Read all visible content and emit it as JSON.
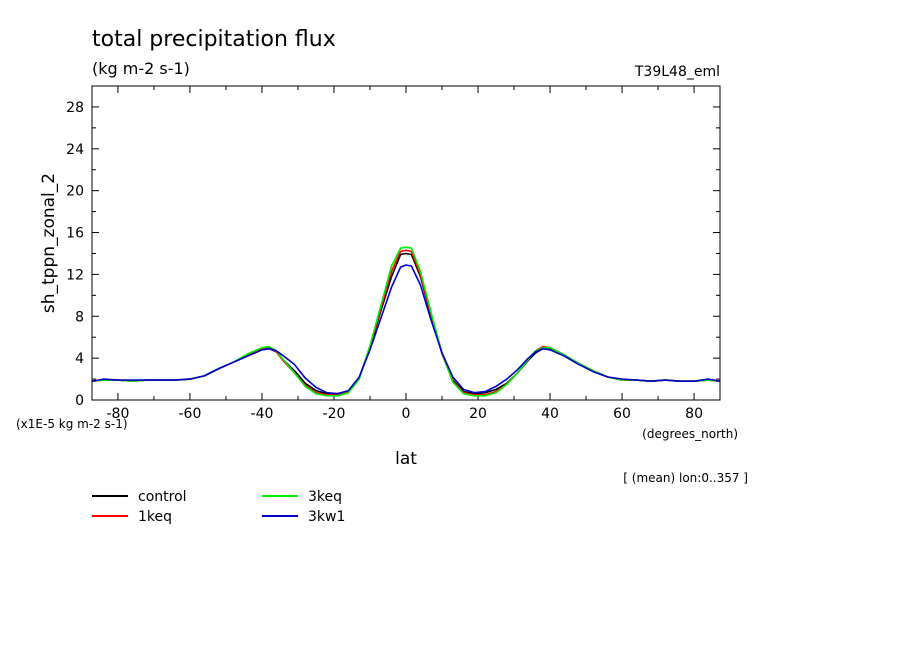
{
  "chart_data": {
    "type": "line",
    "title": "total precipitation flux",
    "units_label": "(kg m-2 s-1)",
    "experiment_label": "T39L48_eml",
    "ylabel": "sh_tppn_zonal_2",
    "xlabel": "lat",
    "x_units": "(degrees_north)",
    "y_scale_note": "(x1E-5 kg m-2 s-1)",
    "subset_note": "[ (mean) lon:0..357 ]",
    "xlim": [
      -87.2,
      87.2
    ],
    "ylim": [
      0,
      30
    ],
    "x_ticks": [
      -80,
      -60,
      -40,
      -20,
      0,
      20,
      40,
      60,
      80
    ],
    "y_ticks": [
      0,
      4,
      8,
      12,
      16,
      20,
      24,
      28
    ],
    "x_tick_labels": [
      "-80",
      "-60",
      "-40",
      "-20",
      "0",
      "20",
      "40",
      "60",
      "80"
    ],
    "y_tick_labels": [
      "0",
      "4",
      "8",
      "12",
      "16",
      "20",
      "24",
      "28"
    ],
    "grid": false,
    "legend_position": "bottom-left",
    "x": [
      -87.2,
      -84,
      -80,
      -76,
      -72,
      -68,
      -64,
      -60,
      -56,
      -52,
      -48,
      -44,
      -40,
      -38,
      -36,
      -34,
      -31,
      -28,
      -25,
      -22,
      -19,
      -16,
      -13,
      -10,
      -7,
      -4,
      -1.5,
      0,
      1.5,
      4,
      7,
      10,
      13,
      16,
      19,
      22,
      25,
      28,
      31,
      34,
      36,
      38,
      40,
      44,
      48,
      52,
      56,
      60,
      64,
      68,
      72,
      76,
      80,
      84,
      87.2
    ],
    "series": [
      {
        "name": "control",
        "color": "#000000",
        "values": [
          1.8,
          1.9,
          1.9,
          1.8,
          1.9,
          1.9,
          1.9,
          2.0,
          2.3,
          3.0,
          3.6,
          4.2,
          4.8,
          4.9,
          4.6,
          3.8,
          2.8,
          1.6,
          0.9,
          0.6,
          0.6,
          0.8,
          2.1,
          5.0,
          8.5,
          11.8,
          13.9,
          14.0,
          13.9,
          11.8,
          8.0,
          4.5,
          1.9,
          0.8,
          0.6,
          0.7,
          1.0,
          1.6,
          2.6,
          3.8,
          4.5,
          4.9,
          4.9,
          4.2,
          3.4,
          2.8,
          2.2,
          1.9,
          1.9,
          1.8,
          1.9,
          1.8,
          1.8,
          1.9,
          1.8
        ]
      },
      {
        "name": "1keq",
        "color": "#ff0000",
        "values": [
          1.8,
          1.9,
          1.9,
          1.8,
          1.9,
          1.9,
          1.9,
          2.0,
          2.3,
          3.0,
          3.6,
          4.3,
          4.9,
          5.0,
          4.6,
          3.7,
          2.6,
          1.4,
          0.7,
          0.5,
          0.5,
          0.8,
          2.1,
          5.1,
          8.7,
          12.3,
          14.2,
          14.3,
          14.2,
          12.0,
          8.1,
          4.4,
          1.8,
          0.7,
          0.5,
          0.5,
          0.8,
          1.5,
          2.6,
          3.9,
          4.7,
          5.1,
          5.0,
          4.3,
          3.5,
          2.8,
          2.2,
          1.9,
          1.9,
          1.8,
          1.9,
          1.8,
          1.8,
          1.9,
          1.8
        ]
      },
      {
        "name": "3keq",
        "color": "#00ee00",
        "values": [
          1.8,
          1.9,
          1.9,
          1.8,
          1.9,
          1.9,
          1.9,
          2.0,
          2.3,
          3.0,
          3.6,
          4.4,
          5.0,
          5.1,
          4.7,
          3.8,
          2.6,
          1.3,
          0.6,
          0.4,
          0.4,
          0.7,
          2.0,
          5.2,
          9.0,
          12.8,
          14.5,
          14.6,
          14.5,
          12.3,
          8.3,
          4.5,
          1.7,
          0.6,
          0.4,
          0.4,
          0.7,
          1.5,
          2.6,
          3.9,
          4.7,
          5.0,
          5.0,
          4.3,
          3.5,
          2.8,
          2.2,
          1.9,
          1.9,
          1.8,
          1.9,
          1.8,
          1.8,
          1.9,
          1.8
        ]
      },
      {
        "name": "3kw1",
        "color": "#0000cc",
        "values": [
          1.8,
          2.0,
          1.9,
          1.9,
          1.9,
          1.9,
          1.9,
          2.0,
          2.3,
          3.0,
          3.6,
          4.2,
          4.8,
          4.9,
          4.7,
          4.2,
          3.4,
          2.1,
          1.2,
          0.7,
          0.6,
          0.9,
          2.2,
          4.8,
          7.8,
          10.8,
          12.7,
          12.9,
          12.8,
          11.0,
          7.6,
          4.5,
          2.2,
          1.0,
          0.7,
          0.8,
          1.3,
          2.0,
          2.9,
          4.0,
          4.6,
          4.9,
          4.8,
          4.2,
          3.4,
          2.7,
          2.2,
          2.0,
          1.9,
          1.8,
          1.9,
          1.8,
          1.8,
          2.0,
          1.8
        ]
      }
    ]
  }
}
